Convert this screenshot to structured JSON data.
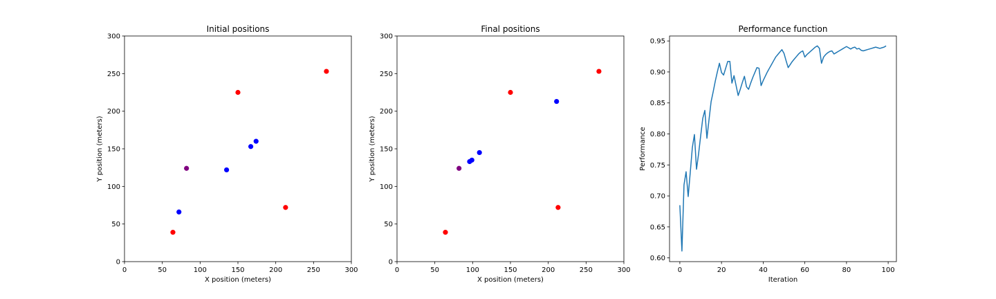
{
  "chart_data": [
    {
      "type": "scatter",
      "title": "Initial positions",
      "xlabel": "X position (meters)",
      "ylabel": "Y position (meters)",
      "xlim": [
        0,
        300
      ],
      "ylim": [
        0,
        300
      ],
      "xticks": [
        0,
        50,
        100,
        150,
        200,
        250,
        300
      ],
      "yticks": [
        0,
        50,
        100,
        150,
        200,
        250,
        300
      ],
      "grid": false,
      "points": [
        {
          "x": 64,
          "y": 39,
          "color": "#ff0000"
        },
        {
          "x": 150,
          "y": 225,
          "color": "#ff0000"
        },
        {
          "x": 213,
          "y": 72,
          "color": "#ff0000"
        },
        {
          "x": 267,
          "y": 253,
          "color": "#ff0000"
        },
        {
          "x": 82,
          "y": 124,
          "color": "#800080"
        },
        {
          "x": 72,
          "y": 66,
          "color": "#0000ff"
        },
        {
          "x": 135,
          "y": 122,
          "color": "#0000ff"
        },
        {
          "x": 167,
          "y": 153,
          "color": "#0000ff"
        },
        {
          "x": 174,
          "y": 160,
          "color": "#0000ff"
        }
      ]
    },
    {
      "type": "scatter",
      "title": "Final positions",
      "xlabel": "X position (meters)",
      "ylabel": "Y position (meters)",
      "xlim": [
        0,
        300
      ],
      "ylim": [
        0,
        300
      ],
      "xticks": [
        0,
        50,
        100,
        150,
        200,
        250,
        300
      ],
      "yticks": [
        0,
        50,
        100,
        150,
        200,
        250,
        300
      ],
      "grid": false,
      "points": [
        {
          "x": 64,
          "y": 39,
          "color": "#ff0000"
        },
        {
          "x": 150,
          "y": 225,
          "color": "#ff0000"
        },
        {
          "x": 213,
          "y": 72,
          "color": "#ff0000"
        },
        {
          "x": 267,
          "y": 253,
          "color": "#ff0000"
        },
        {
          "x": 82,
          "y": 124,
          "color": "#800080"
        },
        {
          "x": 96,
          "y": 133,
          "color": "#0000ff"
        },
        {
          "x": 99,
          "y": 135,
          "color": "#0000ff"
        },
        {
          "x": 109,
          "y": 145,
          "color": "#0000ff"
        },
        {
          "x": 211,
          "y": 213,
          "color": "#0000ff"
        }
      ]
    },
    {
      "type": "line",
      "title": "Performance function",
      "xlabel": "Iteration",
      "ylabel": "Performance",
      "xlim": [
        -4.95,
        103.95
      ],
      "ylim": [
        0.594,
        0.958
      ],
      "xticks": [
        0,
        20,
        40,
        60,
        80,
        100
      ],
      "yticks": [
        0.6,
        0.65,
        0.7,
        0.75,
        0.8,
        0.85,
        0.9,
        0.95
      ],
      "grid": false,
      "series": [
        {
          "color": "#1f77b4",
          "x": [
            0,
            1,
            2,
            3,
            4,
            5,
            6,
            7,
            8,
            9,
            10,
            11,
            12,
            13,
            14,
            15,
            16,
            17,
            18,
            19,
            20,
            21,
            22,
            23,
            24,
            25,
            26,
            27,
            28,
            29,
            30,
            31,
            32,
            33,
            34,
            35,
            36,
            37,
            38,
            39,
            40,
            41,
            42,
            43,
            44,
            45,
            46,
            47,
            48,
            49,
            50,
            51,
            52,
            53,
            54,
            55,
            56,
            57,
            58,
            59,
            60,
            61,
            62,
            63,
            64,
            65,
            66,
            67,
            68,
            69,
            70,
            71,
            72,
            73,
            74,
            75,
            76,
            77,
            78,
            79,
            80,
            81,
            82,
            83,
            84,
            85,
            86,
            87,
            88,
            89,
            90,
            91,
            92,
            93,
            94,
            95,
            96,
            97,
            98,
            99
          ],
          "values": [
            0.685,
            0.611,
            0.718,
            0.739,
            0.699,
            0.738,
            0.778,
            0.799,
            0.743,
            0.768,
            0.797,
            0.825,
            0.838,
            0.793,
            0.823,
            0.852,
            0.868,
            0.885,
            0.9,
            0.914,
            0.899,
            0.895,
            0.906,
            0.917,
            0.917,
            0.882,
            0.894,
            0.878,
            0.862,
            0.872,
            0.883,
            0.893,
            0.876,
            0.872,
            0.882,
            0.891,
            0.899,
            0.907,
            0.906,
            0.878,
            0.886,
            0.893,
            0.9,
            0.906,
            0.912,
            0.918,
            0.924,
            0.928,
            0.932,
            0.936,
            0.93,
            0.918,
            0.907,
            0.912,
            0.917,
            0.921,
            0.925,
            0.929,
            0.932,
            0.934,
            0.924,
            0.928,
            0.931,
            0.934,
            0.937,
            0.94,
            0.942,
            0.938,
            0.914,
            0.924,
            0.928,
            0.931,
            0.933,
            0.934,
            0.929,
            0.931,
            0.933,
            0.935,
            0.937,
            0.939,
            0.941,
            0.939,
            0.937,
            0.939,
            0.94,
            0.937,
            0.938,
            0.935,
            0.934,
            0.935,
            0.936,
            0.937,
            0.938,
            0.939,
            0.94,
            0.939,
            0.938,
            0.939,
            0.94,
            0.942
          ]
        }
      ]
    }
  ]
}
